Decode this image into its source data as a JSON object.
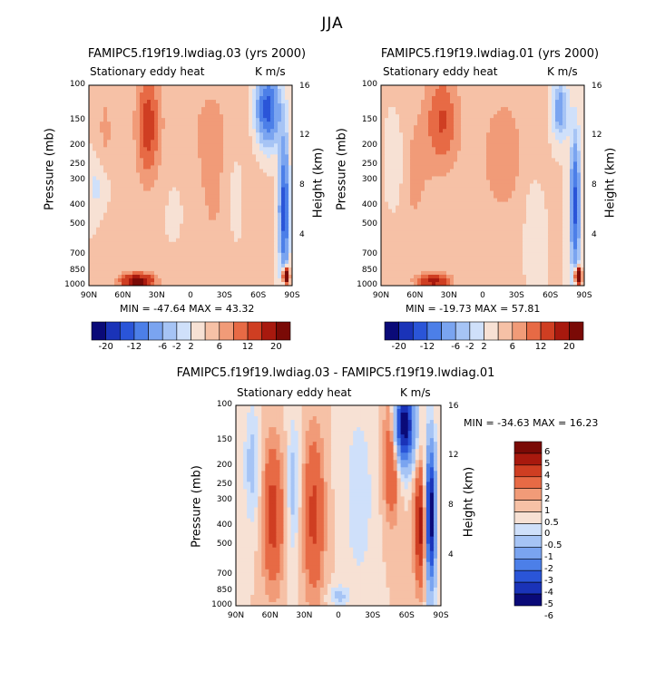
{
  "title": "JJA",
  "panels": [
    {
      "id": "p1",
      "run_title": "FAMIPC5.f19f19.lwdiag.03 (yrs 2000)",
      "var_label": "Stationary eddy heat",
      "units": "K m/s",
      "minmax": "MIN = -47.64   MAX =  43.32"
    },
    {
      "id": "p2",
      "run_title": "FAMIPC5.f19f19.lwdiag.01 (yrs 2000)",
      "var_label": "Stationary eddy heat",
      "units": "K m/s",
      "minmax": "MIN = -19.73   MAX =  57.81"
    },
    {
      "id": "p3",
      "run_title": "FAMIPC5.f19f19.lwdiag.03 - FAMIPC5.f19f19.lwdiag.01",
      "var_label": "Stationary eddy heat",
      "units": "K m/s",
      "minmax": "MIN = -34.63   MAX =  16.23"
    }
  ],
  "axes": {
    "ylabel": "Pressure (mb)",
    "y2label": "Height (km)",
    "pressure_ticks": [
      "100",
      "150",
      "200",
      "250",
      "300",
      "400",
      "500",
      "700",
      "850",
      "1000"
    ],
    "height_ticks": [
      "16",
      "12",
      "8",
      "4"
    ],
    "lat_ticks": [
      "90N",
      "60N",
      "30N",
      "0",
      "30S",
      "60S",
      "90S"
    ]
  },
  "colorbars": {
    "horizontal_labels": [
      "-20",
      "-12",
      "-6",
      "-2",
      "2",
      "6",
      "12",
      "20"
    ],
    "vertical_labels": [
      "6",
      "5",
      "4",
      "3",
      "2",
      "1",
      "0.5",
      "0",
      "-0.5",
      "-1",
      "-2",
      "-3",
      "-4",
      "-5",
      "-6"
    ],
    "colors": [
      "#0a0a78",
      "#1a33b8",
      "#2a55d8",
      "#4c7fe8",
      "#7aa4f0",
      "#a6c4f5",
      "#cfe0fa",
      "#f7e1d4",
      "#f6c1a6",
      "#f19b78",
      "#e76a45",
      "#cf3e22",
      "#a8190e",
      "#7a0a06"
    ]
  },
  "chart_data": [
    {
      "type": "heatmap",
      "title": "FAMIPC5.f19f19.lwdiag.03 (yrs 2000)",
      "subtitle": "Stationary eddy heat",
      "units": "K m/s",
      "xlabel": "",
      "ylabel": "Pressure (mb)",
      "y2label": "Height (km)",
      "xlim": [
        90,
        -90
      ],
      "ylim": [
        1000,
        100
      ],
      "min": -47.64,
      "max": 43.32,
      "levels": [
        -20,
        -16,
        -12,
        -9,
        -6,
        -4,
        -2,
        0,
        2,
        4,
        6,
        9,
        12,
        16,
        20
      ],
      "features": [
        {
          "lat": 38,
          "p": 160,
          "value": 6,
          "type": "positive"
        },
        {
          "lat": -65,
          "p": 130,
          "value": -12,
          "type": "negative"
        },
        {
          "lat": -82,
          "p": 500,
          "value": -12,
          "type": "negative"
        },
        {
          "lat": 30,
          "p": 1000,
          "value": 12,
          "type": "positive"
        },
        {
          "lat": -86,
          "p": 950,
          "value": 20,
          "type": "positive"
        }
      ]
    },
    {
      "type": "heatmap",
      "title": "FAMIPC5.f19f19.lwdiag.01 (yrs 2000)",
      "subtitle": "Stationary eddy heat",
      "units": "K m/s",
      "xlabel": "",
      "ylabel": "Pressure (mb)",
      "y2label": "Height (km)",
      "xlim": [
        90,
        -90
      ],
      "ylim": [
        1000,
        100
      ],
      "min": -19.73,
      "max": 57.81,
      "levels": [
        -20,
        -16,
        -12,
        -9,
        -6,
        -4,
        -2,
        0,
        2,
        4,
        6,
        9,
        12,
        16,
        20
      ],
      "features": [
        {
          "lat": 35,
          "p": 150,
          "value": 6,
          "type": "positive"
        },
        {
          "lat": -65,
          "p": 130,
          "value": -6,
          "type": "negative"
        },
        {
          "lat": -82,
          "p": 500,
          "value": -12,
          "type": "negative"
        },
        {
          "lat": 30,
          "p": 1000,
          "value": 9,
          "type": "positive"
        },
        {
          "lat": -86,
          "p": 950,
          "value": 20,
          "type": "positive"
        }
      ]
    },
    {
      "type": "heatmap",
      "title": "FAMIPC5.f19f19.lwdiag.03 - FAMIPC5.f19f19.lwdiag.01",
      "subtitle": "Stationary eddy heat",
      "units": "K m/s",
      "xlabel": "",
      "ylabel": "Pressure (mb)",
      "y2label": "Height (km)",
      "xlim": [
        90,
        -90
      ],
      "ylim": [
        1000,
        100
      ],
      "min": -34.63,
      "max": 16.23,
      "levels": [
        -6,
        -5,
        -4,
        -3,
        -2,
        -1,
        -0.5,
        0,
        0.5,
        1,
        2,
        3,
        4,
        5,
        6
      ],
      "features": [
        {
          "lat": -60,
          "p": 130,
          "value": -6,
          "type": "negative"
        },
        {
          "lat": -75,
          "p": 450,
          "value": 3,
          "type": "positive"
        },
        {
          "lat": 60,
          "p": 350,
          "value": 2,
          "type": "positive"
        },
        {
          "lat": 25,
          "p": 350,
          "value": 2,
          "type": "positive"
        },
        {
          "lat": -45,
          "p": 250,
          "value": 2,
          "type": "positive"
        },
        {
          "lat": -84,
          "p": 500,
          "value": -6,
          "type": "negative"
        }
      ]
    }
  ]
}
